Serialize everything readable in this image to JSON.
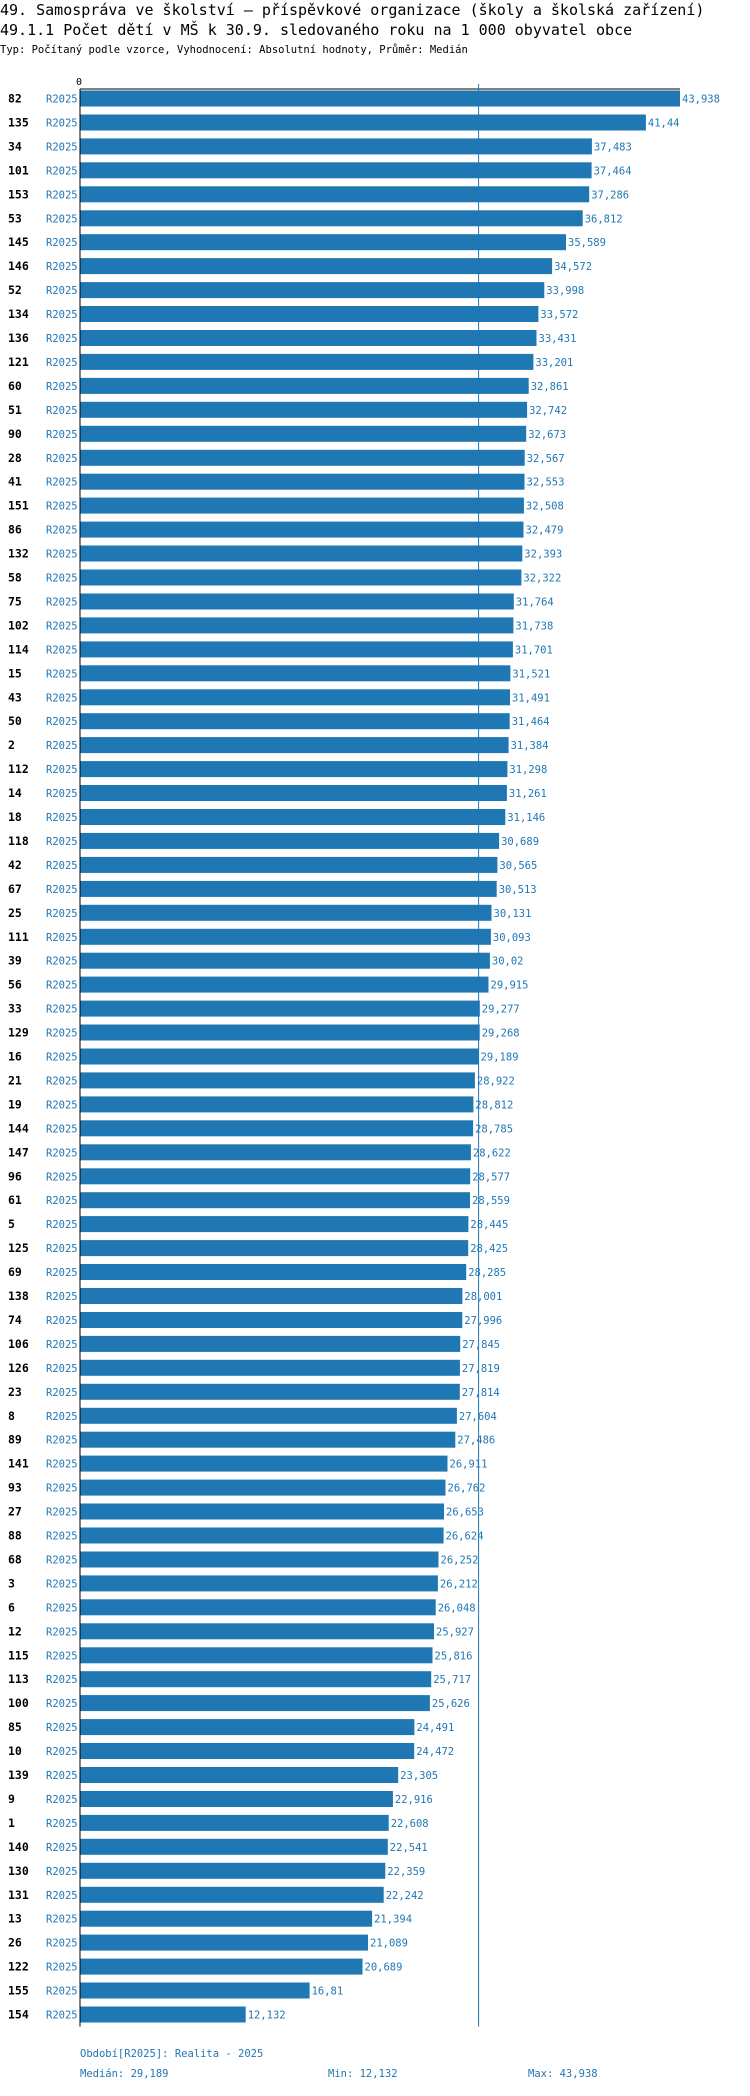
{
  "header": {
    "title_line1": "49. Samospráva ve školství – příspěvkové organizace (školy a školská zařízení)",
    "title_line2": "49.1.1 Počet dětí v MŠ k 30.9. sledovaného roku na 1 000 obyvatel obce",
    "subtitle": "Typ: Počítaný podle vzorce, Vyhodnocení: Absolutní hodnoty, Průměr: Medián"
  },
  "footer": {
    "period": "Období[R2025]: Realita - 2025",
    "median": "Medián: 29,189",
    "min": "Min: 12,132",
    "max": "Max: 43,938"
  },
  "colors": {
    "bar": "#1f77b4",
    "label": "#1f77b4",
    "axis": "#000000",
    "median_line": "#1f77b4"
  },
  "chart_data": {
    "type": "bar",
    "orientation": "horizontal",
    "x_tick_label": "0",
    "xlim": [
      0,
      43.938
    ],
    "median": 29.189,
    "median_label": "29,189",
    "period_label": "R2025",
    "rows": [
      {
        "id": "82",
        "value": 43.938,
        "label": "43,938"
      },
      {
        "id": "135",
        "value": 41.44,
        "label": "41,44"
      },
      {
        "id": "34",
        "value": 37.483,
        "label": "37,483"
      },
      {
        "id": "101",
        "value": 37.464,
        "label": "37,464"
      },
      {
        "id": "153",
        "value": 37.286,
        "label": "37,286"
      },
      {
        "id": "53",
        "value": 36.812,
        "label": "36,812"
      },
      {
        "id": "145",
        "value": 35.589,
        "label": "35,589"
      },
      {
        "id": "146",
        "value": 34.572,
        "label": "34,572"
      },
      {
        "id": "52",
        "value": 33.998,
        "label": "33,998"
      },
      {
        "id": "134",
        "value": 33.572,
        "label": "33,572"
      },
      {
        "id": "136",
        "value": 33.431,
        "label": "33,431"
      },
      {
        "id": "121",
        "value": 33.201,
        "label": "33,201"
      },
      {
        "id": "60",
        "value": 32.861,
        "label": "32,861"
      },
      {
        "id": "51",
        "value": 32.742,
        "label": "32,742"
      },
      {
        "id": "90",
        "value": 32.673,
        "label": "32,673"
      },
      {
        "id": "28",
        "value": 32.567,
        "label": "32,567"
      },
      {
        "id": "41",
        "value": 32.553,
        "label": "32,553"
      },
      {
        "id": "151",
        "value": 32.508,
        "label": "32,508"
      },
      {
        "id": "86",
        "value": 32.479,
        "label": "32,479"
      },
      {
        "id": "132",
        "value": 32.393,
        "label": "32,393"
      },
      {
        "id": "58",
        "value": 32.322,
        "label": "32,322"
      },
      {
        "id": "75",
        "value": 31.764,
        "label": "31,764"
      },
      {
        "id": "102",
        "value": 31.738,
        "label": "31,738"
      },
      {
        "id": "114",
        "value": 31.701,
        "label": "31,701"
      },
      {
        "id": "15",
        "value": 31.521,
        "label": "31,521"
      },
      {
        "id": "43",
        "value": 31.491,
        "label": "31,491"
      },
      {
        "id": "50",
        "value": 31.464,
        "label": "31,464"
      },
      {
        "id": "2",
        "value": 31.384,
        "label": "31,384"
      },
      {
        "id": "112",
        "value": 31.298,
        "label": "31,298"
      },
      {
        "id": "14",
        "value": 31.261,
        "label": "31,261"
      },
      {
        "id": "18",
        "value": 31.146,
        "label": "31,146"
      },
      {
        "id": "118",
        "value": 30.689,
        "label": "30,689"
      },
      {
        "id": "42",
        "value": 30.565,
        "label": "30,565"
      },
      {
        "id": "67",
        "value": 30.513,
        "label": "30,513"
      },
      {
        "id": "25",
        "value": 30.131,
        "label": "30,131"
      },
      {
        "id": "111",
        "value": 30.093,
        "label": "30,093"
      },
      {
        "id": "39",
        "value": 30.02,
        "label": "30,02"
      },
      {
        "id": "56",
        "value": 29.915,
        "label": "29,915"
      },
      {
        "id": "33",
        "value": 29.277,
        "label": "29,277"
      },
      {
        "id": "129",
        "value": 29.268,
        "label": "29,268"
      },
      {
        "id": "16",
        "value": 29.189,
        "label": "29,189"
      },
      {
        "id": "21",
        "value": 28.922,
        "label": "28,922"
      },
      {
        "id": "19",
        "value": 28.812,
        "label": "28,812"
      },
      {
        "id": "144",
        "value": 28.785,
        "label": "28,785"
      },
      {
        "id": "147",
        "value": 28.622,
        "label": "28,622"
      },
      {
        "id": "96",
        "value": 28.577,
        "label": "28,577"
      },
      {
        "id": "61",
        "value": 28.559,
        "label": "28,559"
      },
      {
        "id": "5",
        "value": 28.445,
        "label": "28,445"
      },
      {
        "id": "125",
        "value": 28.425,
        "label": "28,425"
      },
      {
        "id": "69",
        "value": 28.285,
        "label": "28,285"
      },
      {
        "id": "138",
        "value": 28.001,
        "label": "28,001"
      },
      {
        "id": "74",
        "value": 27.996,
        "label": "27,996"
      },
      {
        "id": "106",
        "value": 27.845,
        "label": "27,845"
      },
      {
        "id": "126",
        "value": 27.819,
        "label": "27,819"
      },
      {
        "id": "23",
        "value": 27.814,
        "label": "27,814"
      },
      {
        "id": "8",
        "value": 27.604,
        "label": "27,604"
      },
      {
        "id": "89",
        "value": 27.486,
        "label": "27,486"
      },
      {
        "id": "141",
        "value": 26.911,
        "label": "26,911"
      },
      {
        "id": "93",
        "value": 26.762,
        "label": "26,762"
      },
      {
        "id": "27",
        "value": 26.653,
        "label": "26,653"
      },
      {
        "id": "88",
        "value": 26.624,
        "label": "26,624"
      },
      {
        "id": "68",
        "value": 26.252,
        "label": "26,252"
      },
      {
        "id": "3",
        "value": 26.212,
        "label": "26,212"
      },
      {
        "id": "6",
        "value": 26.048,
        "label": "26,048"
      },
      {
        "id": "12",
        "value": 25.927,
        "label": "25,927"
      },
      {
        "id": "115",
        "value": 25.816,
        "label": "25,816"
      },
      {
        "id": "113",
        "value": 25.717,
        "label": "25,717"
      },
      {
        "id": "100",
        "value": 25.626,
        "label": "25,626"
      },
      {
        "id": "85",
        "value": 24.491,
        "label": "24,491"
      },
      {
        "id": "10",
        "value": 24.472,
        "label": "24,472"
      },
      {
        "id": "139",
        "value": 23.305,
        "label": "23,305"
      },
      {
        "id": "9",
        "value": 22.916,
        "label": "22,916"
      },
      {
        "id": "1",
        "value": 22.608,
        "label": "22,608"
      },
      {
        "id": "140",
        "value": 22.541,
        "label": "22,541"
      },
      {
        "id": "130",
        "value": 22.359,
        "label": "22,359"
      },
      {
        "id": "131",
        "value": 22.242,
        "label": "22,242"
      },
      {
        "id": "13",
        "value": 21.394,
        "label": "21,394"
      },
      {
        "id": "26",
        "value": 21.089,
        "label": "21,089"
      },
      {
        "id": "122",
        "value": 20.689,
        "label": "20,689"
      },
      {
        "id": "155",
        "value": 16.81,
        "label": "16,81"
      },
      {
        "id": "154",
        "value": 12.132,
        "label": "12,132"
      }
    ]
  }
}
